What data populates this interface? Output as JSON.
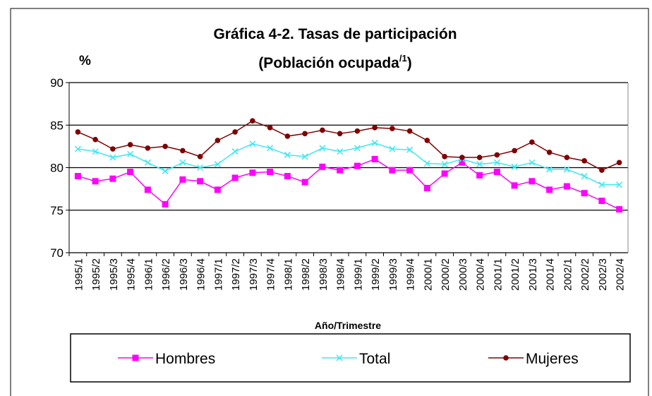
{
  "chart_data": {
    "type": "line",
    "title": "Gráfica 4-2. Tasas de participación",
    "subtitle": [
      "(Población ocupada",
      "/1",
      ")"
    ],
    "y_label": "%",
    "x_label": "Año/Trimestre",
    "categories": [
      "1995/1",
      "1995/2",
      "1995/3",
      "1995/4",
      "1996/1",
      "1996/2",
      "1996/3",
      "1996/4",
      "1997/1",
      "1997/2",
      "1997/3",
      "1997/4",
      "1998/1",
      "1998/2",
      "1998/3",
      "1998/4",
      "1999/1",
      "1999/2",
      "1999/3",
      "1999/4",
      "2000/1",
      "2000/2",
      "2000/3",
      "2000/4",
      "2001/1",
      "2001/2",
      "2001/3",
      "2001/4",
      "2002/1",
      "2002/2",
      "2002/3",
      "2002/4"
    ],
    "series": [
      {
        "name": "Hombres",
        "color": "#ff00ff",
        "marker": "square",
        "values": [
          79.0,
          78.4,
          78.7,
          79.5,
          77.4,
          75.7,
          78.6,
          78.4,
          77.4,
          78.8,
          79.4,
          79.5,
          79.0,
          78.3,
          80.1,
          79.7,
          80.2,
          81.0,
          79.7,
          79.7,
          77.6,
          79.3,
          80.6,
          79.1,
          79.5,
          77.9,
          78.4,
          77.4,
          77.8,
          77.0,
          76.1,
          75.1
        ]
      },
      {
        "name": "Total",
        "color": "#3ee8f0",
        "marker": "x",
        "values": [
          82.2,
          81.9,
          81.2,
          81.6,
          80.6,
          79.6,
          80.6,
          80.0,
          80.4,
          81.9,
          82.8,
          82.3,
          81.5,
          81.3,
          82.3,
          81.9,
          82.3,
          82.9,
          82.2,
          82.1,
          80.5,
          80.4,
          81.0,
          80.4,
          80.6,
          80.1,
          80.6,
          79.8,
          79.8,
          79.0,
          78.0,
          78.0
        ]
      },
      {
        "name": "Mujeres",
        "color": "#800000",
        "marker": "circle",
        "values": [
          84.2,
          83.3,
          82.2,
          82.7,
          82.3,
          82.5,
          82.0,
          81.3,
          83.2,
          84.2,
          85.5,
          84.7,
          83.7,
          84.0,
          84.4,
          84.0,
          84.3,
          84.7,
          84.6,
          84.3,
          83.2,
          81.3,
          81.2,
          81.2,
          81.5,
          82.0,
          83.0,
          81.8,
          81.2,
          80.8,
          79.7,
          80.6
        ]
      }
    ],
    "ylim": [
      70,
      90
    ],
    "yticks": [
      70,
      75,
      80,
      85,
      90
    ],
    "grid": true,
    "legend": "bottom"
  }
}
